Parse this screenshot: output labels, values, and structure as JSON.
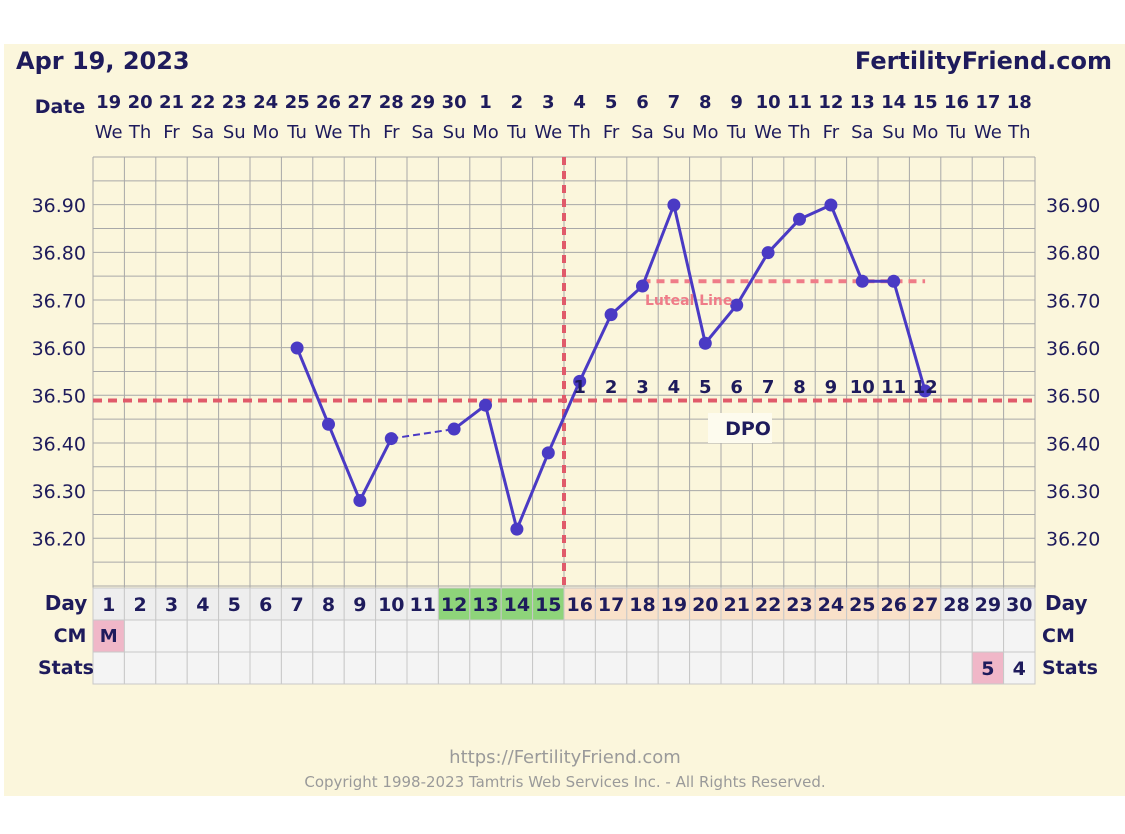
{
  "header": {
    "date": "Apr 19, 2023",
    "site": "FertilityFriend.com"
  },
  "labels": {
    "date_row": "Date",
    "day_row": "Day",
    "cm_row": "CM",
    "stats_row": "Stats",
    "luteal_line": "Luteal Line",
    "dpo": "DPO"
  },
  "footer": {
    "url": "https://FertilityFriend.com",
    "copyright": "Copyright 1998-2023 Tamtris Web Services Inc. - All Rights Reserved."
  },
  "colors": {
    "background": "#fbf6dc",
    "line": "#4a3ac4",
    "coverline": "#e05a6a",
    "ovulation": "#e05a6a",
    "fertile_cell": "#8ed47a",
    "luteal_cell": "#f9e1c9",
    "menses_cell": "#f0b7c8",
    "text": "#1e1b5c"
  },
  "chart_data": {
    "type": "line",
    "dates": [
      "19",
      "20",
      "21",
      "22",
      "23",
      "24",
      "25",
      "26",
      "27",
      "28",
      "29",
      "30",
      "1",
      "2",
      "3",
      "4",
      "5",
      "6",
      "7",
      "8",
      "9",
      "10",
      "11",
      "12",
      "13",
      "14",
      "15",
      "16",
      "17",
      "18"
    ],
    "weekdays": [
      "We",
      "Th",
      "Fr",
      "Sa",
      "Su",
      "Mo",
      "Tu",
      "We",
      "Th",
      "Fr",
      "Sa",
      "Su",
      "Mo",
      "Tu",
      "We",
      "Th",
      "Fr",
      "Sa",
      "Su",
      "Mo",
      "Tu",
      "We",
      "Th",
      "Fr",
      "Sa",
      "Su",
      "Mo",
      "Tu",
      "We",
      "Th"
    ],
    "cycle_days": [
      "1",
      "2",
      "3",
      "4",
      "5",
      "6",
      "7",
      "8",
      "9",
      "10",
      "11",
      "12",
      "13",
      "14",
      "15",
      "16",
      "17",
      "18",
      "19",
      "20",
      "21",
      "22",
      "23",
      "24",
      "25",
      "26",
      "27",
      "28",
      "29",
      "30"
    ],
    "temperatures": [
      null,
      null,
      null,
      null,
      null,
      null,
      36.6,
      36.44,
      36.28,
      36.41,
      null,
      36.43,
      36.48,
      36.22,
      36.38,
      36.53,
      36.67,
      36.73,
      36.9,
      36.61,
      36.69,
      36.8,
      36.87,
      36.9,
      36.74,
      36.74,
      36.51,
      null,
      null,
      null
    ],
    "y_ticks": [
      "36.90",
      "36.80",
      "36.70",
      "36.60",
      "36.50",
      "36.40",
      "36.30",
      "36.20"
    ],
    "ylim": [
      36.1,
      37.0
    ],
    "coverline": 36.49,
    "luteal_line": 36.74,
    "luteal_line_days": [
      18,
      27
    ],
    "ovulation_day": 15,
    "dpo": [
      "1",
      "2",
      "3",
      "4",
      "5",
      "6",
      "7",
      "8",
      "9",
      "10",
      "11",
      "12"
    ],
    "dpo_start_day": 16,
    "fertile_days": [
      12,
      13,
      14,
      15
    ],
    "luteal_days_range": [
      16,
      27
    ],
    "cm": [
      {
        "day": 1,
        "value": "M"
      }
    ],
    "stats": [
      {
        "day": 29,
        "value": "5",
        "highlight": true
      },
      {
        "day": 30,
        "value": "4",
        "highlight": false
      }
    ]
  }
}
